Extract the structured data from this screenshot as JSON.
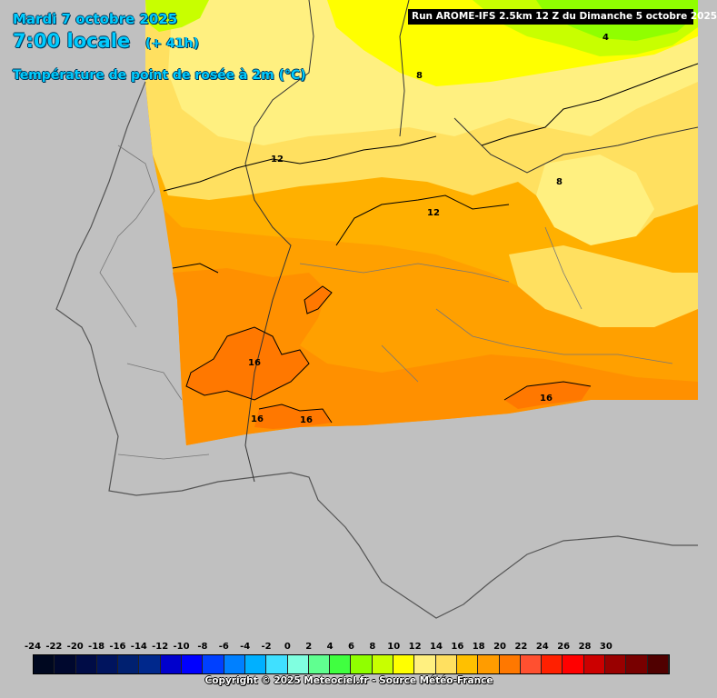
{
  "header": {
    "date": "Mardi 7 octobre 2025",
    "time": "7:00 locale",
    "offset": "(+ 41h)",
    "parameter": "Température de point de rosée à 2m (°C)"
  },
  "run_info": "Run AROME-IFS 2.5km 12 Z du Dimanche 5 octobre 2025",
  "contour_labels": [
    "4",
    "8",
    "8",
    "12",
    "12",
    "16",
    "16",
    "16",
    "16"
  ],
  "legend": {
    "labels": [
      "-24",
      "-22",
      "-20",
      "-18",
      "-16",
      "-14",
      "-12",
      "-10",
      "-8",
      "-6",
      "-4",
      "-2",
      "0",
      "2",
      "4",
      "6",
      "8",
      "10",
      "12",
      "14",
      "16",
      "18",
      "20",
      "22",
      "24",
      "26",
      "28",
      "30"
    ],
    "colors": [
      "#000820",
      "#00082e",
      "#000c46",
      "#00145e",
      "#002070",
      "#00288c",
      "#0000cc",
      "#0000ff",
      "#0040ff",
      "#0080ff",
      "#00b0ff",
      "#40e0ff",
      "#80ffe0",
      "#60ff90",
      "#40ff40",
      "#90ff00",
      "#c8ff00",
      "#ffff00",
      "#fff080",
      "#ffe060",
      "#ffc000",
      "#ff9c00",
      "#ff7800",
      "#ff5030",
      "#ff2000",
      "#ff0000",
      "#cc0000",
      "#990000",
      "#780000",
      "#500000"
    ]
  },
  "copyright": "Copyright © 2025 Meteociel.fr - Source Météo-France"
}
